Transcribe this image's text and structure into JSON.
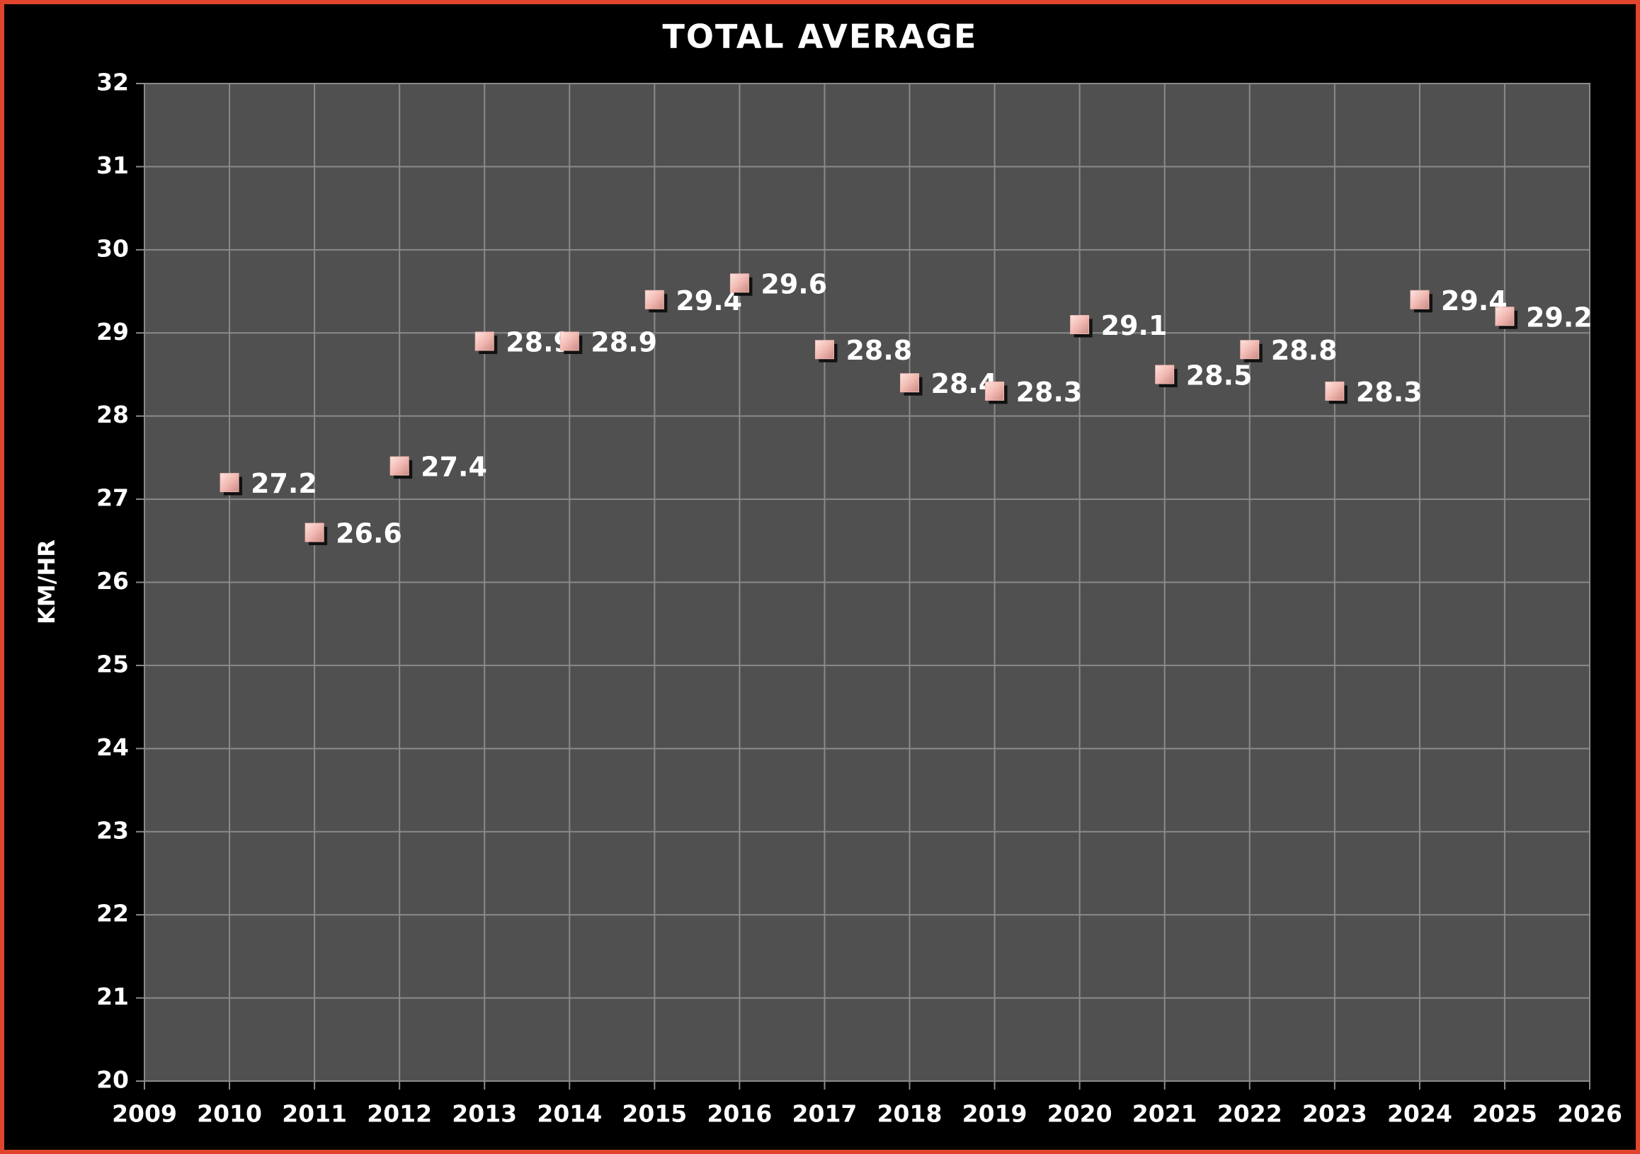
{
  "chart_data": {
    "type": "scatter",
    "title": "TOTAL AVERAGE",
    "y_label": "KM/HR",
    "x": [
      2010,
      2011,
      2012,
      2013,
      2014,
      2015,
      2016,
      2017,
      2018,
      2019,
      2020,
      2021,
      2022,
      2023,
      2024,
      2025
    ],
    "values": [
      27.2,
      26.6,
      27.4,
      28.9,
      28.9,
      29.4,
      29.6,
      28.8,
      28.4,
      28.3,
      29.1,
      28.5,
      28.8,
      28.3,
      29.4,
      29.2
    ],
    "color": "#f2b9b2",
    "xlim": [
      2009,
      2026
    ],
    "xticks": [
      2009,
      2010,
      2011,
      2012,
      2013,
      2014,
      2015,
      2016,
      2017,
      2018,
      2019,
      2020,
      2021,
      2022,
      2023,
      2024,
      2025,
      2026
    ],
    "ylim": [
      20,
      32
    ],
    "yticks": [
      20,
      21,
      22,
      23,
      24,
      25,
      26,
      27,
      28,
      29,
      30,
      31,
      32
    ],
    "grid": true,
    "data_labels": true
  }
}
